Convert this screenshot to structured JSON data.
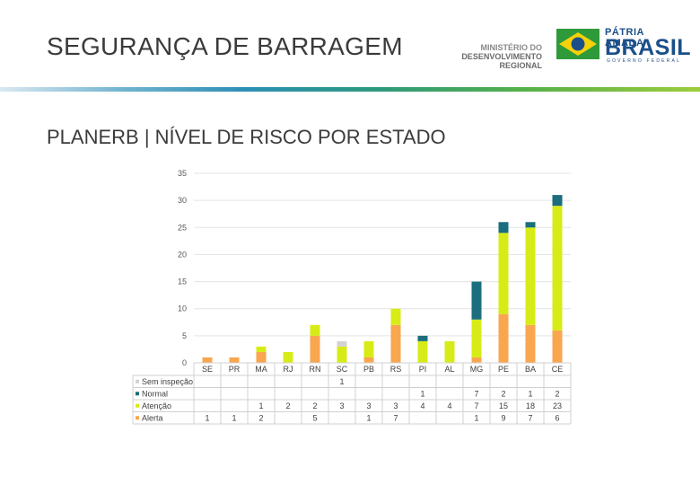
{
  "header": {
    "title": "SEGURANÇA DE BARRAGEM",
    "ministry_line1": "MINISTÉRIO DO",
    "ministry_line2": "DESENVOLVIMENTO REGIONAL",
    "logo_line1": "PÁTRIA AMADA",
    "logo_line2": "BRASIL",
    "logo_line3": "GOVERNO FEDERAL"
  },
  "subtitle": "PLANERB | NÍVEL DE RISCO POR ESTADO",
  "chart_data": {
    "type": "bar",
    "stacked": true,
    "categories": [
      "SE",
      "PR",
      "MA",
      "RJ",
      "RN",
      "SC",
      "PB",
      "RS",
      "PI",
      "AL",
      "MG",
      "PE",
      "BA",
      "CE"
    ],
    "series": [
      {
        "name": "Alerta",
        "color": "#f9a64f",
        "values": [
          1,
          1,
          2,
          null,
          5,
          null,
          1,
          7,
          null,
          null,
          1,
          9,
          7,
          6
        ]
      },
      {
        "name": "Atenção",
        "color": "#d7ec16",
        "values": [
          null,
          null,
          1,
          2,
          2,
          3,
          3,
          3,
          4,
          4,
          7,
          15,
          18,
          23
        ]
      },
      {
        "name": "Normal",
        "color": "#1b6e7d",
        "values": [
          null,
          null,
          null,
          null,
          null,
          null,
          null,
          null,
          1,
          null,
          7,
          2,
          1,
          2
        ]
      },
      {
        "name": "Sem inspeção",
        "color": "#d3d3d3",
        "values": [
          null,
          null,
          null,
          null,
          null,
          1,
          null,
          null,
          null,
          null,
          null,
          null,
          null,
          null
        ]
      }
    ],
    "ylim": [
      0,
      35
    ],
    "yticks": [
      0,
      5,
      10,
      15,
      20,
      25,
      30,
      35
    ],
    "grid": true,
    "legend_placement": "data-table-left"
  }
}
